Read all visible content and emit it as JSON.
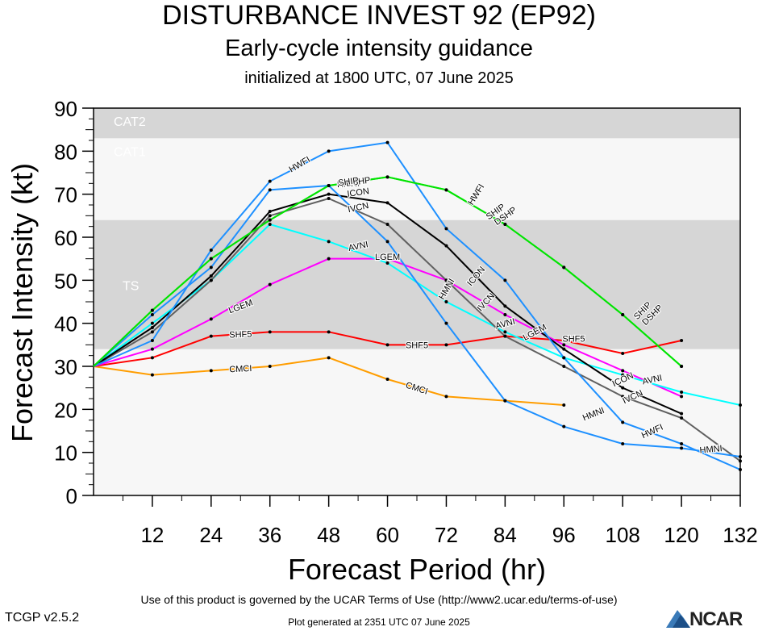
{
  "title": "DISTURBANCE INVEST 92 (EP92)",
  "subtitle": "Early-cycle intensity guidance",
  "init_line": "initialized at 1800 UTC, 07 June 2025",
  "footer": {
    "terms": "Use of this product is governed by the UCAR Terms of Use (http://www2.ucar.edu/terms-of-use)",
    "version": "TCGP v2.5.2",
    "generated": "Plot generated at 2351 UTC   07 June 2025",
    "logo": "NCAR"
  },
  "chart_data": {
    "type": "line",
    "xlabel": "Forecast Period (hr)",
    "ylabel": "Forecast Intensity (kt)",
    "xlim": [
      0,
      132
    ],
    "ylim": [
      0,
      90
    ],
    "xticks": [
      12,
      24,
      36,
      48,
      60,
      72,
      84,
      96,
      108,
      120,
      132
    ],
    "yticks": [
      0,
      10,
      20,
      30,
      40,
      50,
      60,
      70,
      80,
      90
    ],
    "bands": [
      {
        "label": "",
        "from": 0,
        "to": 34,
        "color": "#f7f7f7"
      },
      {
        "label": "TS",
        "from": 34,
        "to": 64,
        "color": "#d6d6d6"
      },
      {
        "label": "CAT1",
        "from": 64,
        "to": 83,
        "color": "#f7f7f7"
      },
      {
        "label": "CAT2",
        "from": 83,
        "to": 90,
        "color": "#d6d6d6"
      }
    ],
    "series": [
      {
        "name": "CMCI",
        "color": "#ff9d00",
        "x": [
          0,
          12,
          24,
          36,
          48,
          60,
          72,
          84,
          96
        ],
        "y": [
          30,
          28,
          29,
          30,
          32,
          27,
          23,
          22,
          21
        ],
        "labels": [
          {
            "at": 30,
            "y": 29.5,
            "rot": -3
          },
          {
            "at": 66,
            "y": 25,
            "rot": 18
          }
        ]
      },
      {
        "name": "SHF5",
        "color": "#ff0000",
        "x": [
          0,
          12,
          24,
          36,
          48,
          60,
          72,
          84,
          96,
          108,
          120
        ],
        "y": [
          30,
          32,
          37,
          38,
          38,
          35,
          35,
          37,
          36,
          33,
          36
        ],
        "labels": [
          {
            "at": 30,
            "y": 37.5,
            "rot": -2
          },
          {
            "at": 66,
            "y": 35,
            "rot": 0
          },
          {
            "at": 98,
            "y": 36.5,
            "rot": 0
          }
        ]
      },
      {
        "name": "LGEM",
        "color": "#ff00ff",
        "x": [
          0,
          12,
          24,
          36,
          48,
          60,
          72,
          84,
          96,
          108,
          120
        ],
        "y": [
          30,
          34,
          41,
          49,
          55,
          55,
          50,
          42,
          35,
          29,
          23
        ],
        "labels": [
          {
            "at": 30,
            "y": 44,
            "rot": -20
          },
          {
            "at": 60,
            "y": 55.5,
            "rot": 0
          },
          {
            "at": 90,
            "y": 38,
            "rot": -28
          }
        ]
      },
      {
        "name": "AVNI",
        "color": "#00ffff",
        "x": [
          0,
          12,
          24,
          36,
          48,
          60,
          72,
          84,
          96,
          108,
          120,
          132
        ],
        "y": [
          30,
          40,
          50,
          63,
          59,
          54,
          45,
          38,
          32,
          28,
          24,
          21
        ],
        "labels": [
          {
            "at": 54,
            "y": 58,
            "rot": -12
          },
          {
            "at": 84,
            "y": 40,
            "rot": -15
          },
          {
            "at": 114,
            "y": 27,
            "rot": -12
          }
        ]
      },
      {
        "name": "IVCN",
        "color": "#606060",
        "x": [
          0,
          12,
          24,
          36,
          48,
          60,
          72,
          84,
          96,
          108,
          120,
          132
        ],
        "y": [
          30,
          38,
          50,
          65,
          69,
          63,
          50,
          37,
          30,
          23,
          18,
          8
        ],
        "labels": [
          {
            "at": 54,
            "y": 67,
            "rot": -12
          },
          {
            "at": 80,
            "y": 45,
            "rot": -48
          },
          {
            "at": 110,
            "y": 23,
            "rot": -25
          }
        ]
      },
      {
        "name": "ICON",
        "color": "#000000",
        "x": [
          0,
          12,
          24,
          36,
          48,
          60,
          72,
          84,
          96,
          108,
          120
        ],
        "y": [
          30,
          39,
          51,
          66,
          70,
          68,
          58,
          44,
          34,
          25,
          19
        ],
        "labels": [
          {
            "at": 54,
            "y": 70.5,
            "rot": -8
          },
          {
            "at": 78,
            "y": 51,
            "rot": -50
          },
          {
            "at": 108,
            "y": 27,
            "rot": -25
          }
        ]
      },
      {
        "name": "HMNI",
        "color": "#1e90ff",
        "x": [
          0,
          12,
          24,
          36,
          48,
          60,
          72,
          84,
          96,
          108,
          120,
          132
        ],
        "y": [
          30,
          42,
          53,
          71,
          72,
          59,
          40,
          22,
          16,
          12,
          11,
          9
        ],
        "labels": [
          {
            "at": 52,
            "y": 72.5,
            "rot": -3
          },
          {
            "at": 72,
            "y": 48,
            "rot": -60
          },
          {
            "at": 102,
            "y": 19,
            "rot": -22
          },
          {
            "at": 126,
            "y": 10.8,
            "rot": -5
          }
        ]
      },
      {
        "name": "HWFI",
        "color": "#1e90ff",
        "x": [
          0,
          12,
          24,
          36,
          48,
          60,
          72,
          84,
          96,
          108,
          120,
          132
        ],
        "y": [
          30,
          36,
          57,
          73,
          80,
          82,
          62,
          50,
          32,
          17,
          12,
          6
        ],
        "labels": [
          {
            "at": 42,
            "y": 77,
            "rot": -30
          },
          {
            "at": 78,
            "y": 70,
            "rot": -58
          },
          {
            "at": 114,
            "y": 15,
            "rot": -25
          }
        ]
      },
      {
        "name": "DSHP",
        "color": "#00e400",
        "x": [
          0,
          12,
          24,
          36,
          48,
          60,
          72,
          84,
          96,
          108,
          120
        ],
        "y": [
          30,
          43,
          55,
          64,
          72,
          74,
          71,
          63,
          53,
          42,
          30
        ],
        "labels": [
          {
            "at": 54,
            "y": 73,
            "rot": -8
          },
          {
            "at": 84,
            "y": 65,
            "rot": -35
          },
          {
            "at": 114,
            "y": 42,
            "rot": -45
          }
        ]
      },
      {
        "name": "SHIP",
        "color": "#00e400",
        "x": [
          0,
          12,
          24,
          36,
          48,
          60,
          72,
          84,
          96,
          108,
          120
        ],
        "y": [
          30,
          43,
          55,
          64,
          72,
          74,
          71,
          63,
          53,
          42,
          30
        ],
        "labels": [
          {
            "at": 52,
            "y": 73,
            "rot": -8
          },
          {
            "at": 82,
            "y": 66,
            "rot": -35
          },
          {
            "at": 112,
            "y": 43,
            "rot": -45
          }
        ]
      }
    ]
  }
}
